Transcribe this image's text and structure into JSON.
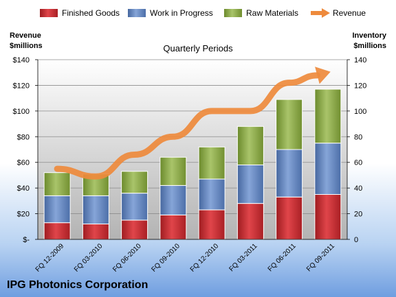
{
  "chart_data": {
    "type": "bar",
    "stacked": true,
    "subtitle": "Quarterly Periods",
    "company": "IPG Photonics Corporation",
    "left_axis_title": [
      "Revenue",
      "$millions"
    ],
    "right_axis_title": [
      "Inventory",
      "$millions"
    ],
    "ylim": [
      0,
      140
    ],
    "left_ticks": [
      "$-",
      "$20",
      "$40",
      "$60",
      "$80",
      "$100",
      "$120",
      "$140"
    ],
    "right_ticks": [
      "0",
      "20",
      "40",
      "60",
      "80",
      "100",
      "120",
      "140"
    ],
    "categories": [
      "FQ 12-2009",
      "FQ 03-2010",
      "FQ 06-2010",
      "FQ 09-2010",
      "FQ 12-2010",
      "FQ 03-2011",
      "FQ 06-2011",
      "FQ 09-2011"
    ],
    "series": [
      {
        "name": "Finished Goods",
        "kind": "bar",
        "color": "#c0282d",
        "values": [
          13,
          12,
          15,
          19,
          23,
          28,
          33,
          35
        ]
      },
      {
        "name": "Work in Progress",
        "kind": "bar",
        "color": "#5b7fbf",
        "values": [
          21,
          22,
          21,
          23,
          24,
          30,
          37,
          40
        ]
      },
      {
        "name": "Raw Materials",
        "kind": "bar",
        "color": "#7e9e3a",
        "values": [
          18,
          17,
          17,
          22,
          25,
          30,
          39,
          42
        ]
      },
      {
        "name": "Revenue",
        "kind": "line",
        "color": "#ee8a3c",
        "values": [
          55,
          49,
          66,
          80,
          100,
          100,
          122,
          130
        ]
      }
    ],
    "legend_position": "top"
  }
}
